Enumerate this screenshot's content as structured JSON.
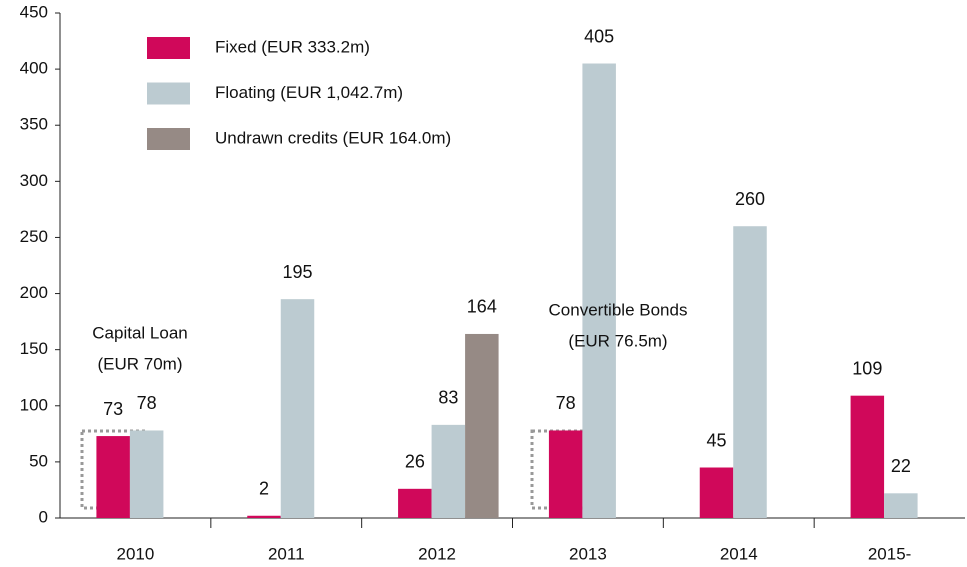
{
  "chart_data": {
    "type": "bar",
    "categories": [
      "2010",
      "2011",
      "2012",
      "2013",
      "2014",
      "2015-"
    ],
    "series": [
      {
        "name": "Fixed (EUR 333.2m)",
        "color": "#d0085a",
        "values": [
          73,
          2,
          26,
          78,
          45,
          109
        ]
      },
      {
        "name": "Floating (EUR 1,042.7m)",
        "color": "#bccbd1",
        "values": [
          78,
          195,
          83,
          405,
          260,
          22
        ]
      },
      {
        "name": "Undrawn credits (EUR 164.0m)",
        "color": "#968a85",
        "values": [
          null,
          null,
          164,
          null,
          null,
          null
        ]
      }
    ],
    "ylim": [
      0,
      450
    ],
    "yticks": [
      0,
      50,
      100,
      150,
      200,
      250,
      300,
      350,
      400,
      450
    ],
    "annotations": [
      [
        "Capital Loan",
        "(EUR 70m)"
      ],
      [
        "Convertible Bonds",
        "(EUR 76.5m)"
      ]
    ],
    "legend": "upper-left"
  }
}
